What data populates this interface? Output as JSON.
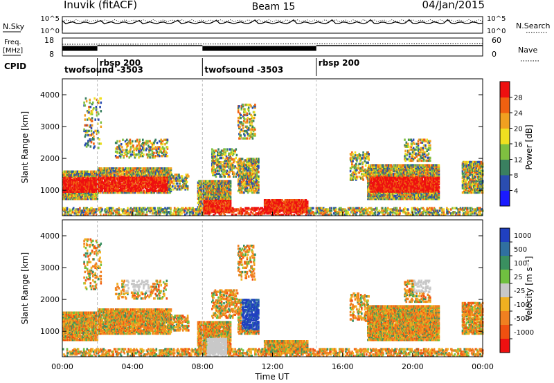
{
  "header": {
    "station": "Inuvik (fitACF)",
    "beam": "Beam 15",
    "date": "04/Jan/2015"
  },
  "noise_panel": {
    "left_label": "N.Sky",
    "left_ticks": [
      "10^5",
      "10^0"
    ],
    "right_ticks": [
      "10^5",
      "10^0"
    ],
    "right_label": "N.Search"
  },
  "freq_panel": {
    "label_line1": "Freq.",
    "label_line2": "[MHz]",
    "left_ticks": [
      "18",
      "8"
    ],
    "right_ticks": [
      "60",
      "0"
    ],
    "right_label": "Nave"
  },
  "cpid": {
    "label": "CPID",
    "segments": [
      {
        "name": "twofsound -3503",
        "start_h": 0,
        "end_h": 2
      },
      {
        "name": "rbsp 200",
        "start_h": 2,
        "end_h": 8
      },
      {
        "name": "twofsound -3503",
        "start_h": 8,
        "end_h": 14.5
      },
      {
        "name": "rbsp 200",
        "start_h": 14.5,
        "end_h": 24
      }
    ]
  },
  "chart_data": [
    {
      "type": "heatmap",
      "name": "power",
      "ylabel": "Slant Range [km]",
      "yticks": [
        "1000",
        "2000",
        "3000",
        "4000"
      ],
      "ylim": [
        200,
        4500
      ],
      "xlim": [
        0,
        24
      ],
      "colorbar_label": "Power [dB]",
      "colorbar_ticks": [
        "4",
        "8",
        "12",
        "16",
        "20",
        "24",
        "28"
      ],
      "colors": [
        "#1a1aff",
        "#2a4db0",
        "#3a8060",
        "#7fc040",
        "#f0e020",
        "#f0a020",
        "#f06010",
        "#ee1010"
      ]
    },
    {
      "type": "heatmap",
      "name": "velocity",
      "ylabel": "Slant Range [km]",
      "yticks": [
        "1000",
        "2000",
        "3000",
        "4000"
      ],
      "ylim": [
        200,
        4500
      ],
      "xlim": [
        0,
        24
      ],
      "xlabel": "Time UT",
      "xticks": [
        "00:00",
        "04:00",
        "08:00",
        "12:00",
        "16:00",
        "20:00",
        "00:00"
      ],
      "colorbar_label": "Velocity [m s⁻¹]",
      "colorbar_ticks": [
        "1000",
        "500",
        "100",
        "25",
        "-25",
        "-100",
        "-500",
        "-1000"
      ],
      "colors": [
        "#2040c0",
        "#3070a0",
        "#3a9060",
        "#70c040",
        "#c8c8c8",
        "#f0b020",
        "#f08020",
        "#f05010",
        "#ee1010"
      ]
    }
  ]
}
